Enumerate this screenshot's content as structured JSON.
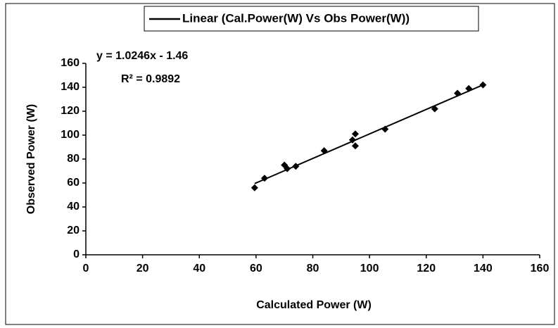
{
  "chart_data": {
    "type": "scatter",
    "x_label": "Calculated Power (W)",
    "y_label": "Observed Power (W)",
    "equation": "y = 1.0246x - 1.46",
    "r_squared": "R² = 0.9892",
    "color": "#000000",
    "x": [
      59.5,
      63,
      70,
      71,
      74,
      84,
      94,
      95,
      95,
      105.5,
      123,
      131,
      135,
      140
    ],
    "values": [
      56,
      64,
      75,
      72,
      74,
      87,
      96,
      101,
      91,
      105,
      122,
      135,
      139,
      142
    ],
    "trendline": {
      "name": "Linear (Cal.Power(W) Vs Obs Power(W))",
      "x": [
        59.5,
        140
      ],
      "values": [
        59.5,
        142
      ]
    },
    "xlim": [
      0,
      160
    ],
    "xticks": [
      0,
      20,
      40,
      60,
      80,
      100,
      120,
      140,
      160
    ],
    "ylim": [
      0,
      160
    ],
    "yticks": [
      0,
      20,
      40,
      60,
      80,
      100,
      120,
      140,
      160
    ],
    "grid": false
  }
}
